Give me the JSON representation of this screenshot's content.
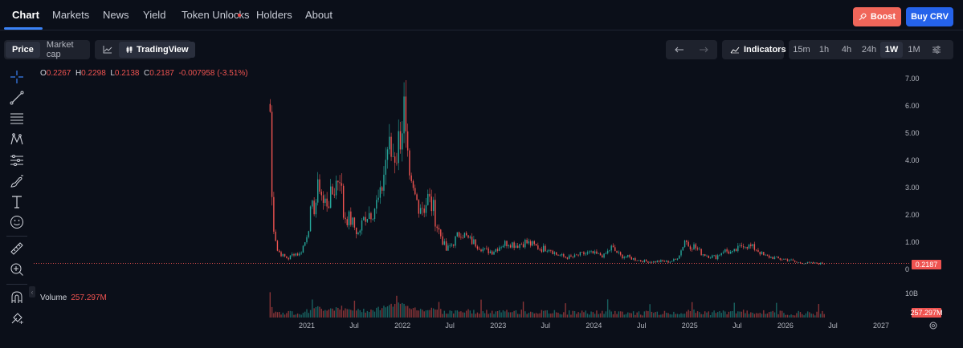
{
  "nav": {
    "tabs": [
      {
        "label": "Chart"
      },
      {
        "label": "Markets"
      },
      {
        "label": "News"
      },
      {
        "label": "Yield"
      },
      {
        "label": "Token Unlocks"
      },
      {
        "label": "Holders"
      },
      {
        "label": "About"
      }
    ],
    "active_tab": "Chart",
    "boost_label": "Boost",
    "buy_label": "Buy CRV",
    "boost_color": "#f0665a",
    "buy_color": "#2563eb"
  },
  "toolbar": {
    "price_label": "Price",
    "marketcap_label": "Market cap",
    "tradingview_label": "TradingView",
    "indicators_label": "Indicators",
    "timeframes": [
      "15m",
      "1h",
      "4h",
      "24h",
      "1W",
      "1M"
    ],
    "active_timeframe": "1W"
  },
  "ohlc": {
    "o_label": "O",
    "o": "0.2267",
    "h_label": "H",
    "h": "0.2298",
    "l_label": "L",
    "l": "0.2138",
    "c_label": "C",
    "c": "0.2187",
    "change": "-0.007958 (-3.51%)"
  },
  "volume": {
    "label": "Volume",
    "value": "257.297M",
    "axis_top": "10B",
    "badge": "257.297M"
  },
  "price_badge": "0.2187",
  "colors": {
    "up": "#26a69a",
    "down": "#ef5350",
    "accent": "#3b82f6"
  },
  "left_tools": [
    "crosshair-icon",
    "trendline-icon",
    "fib-icon",
    "pattern-icon",
    "prediction-icon",
    "brush-icon",
    "text-icon",
    "emoji-icon",
    "ruler-icon",
    "zoom-in-icon",
    "magnet-icon",
    "lock-icon"
  ],
  "chart_data": {
    "type": "candlestick",
    "ylabel": "",
    "y_ticks": [
      "7.00",
      "6.00",
      "5.00",
      "4.00",
      "3.00",
      "2.00",
      "1.00",
      "0"
    ],
    "ylim": [
      0,
      7
    ],
    "x_ticks": [
      "2021",
      "Jul",
      "2022",
      "Jul",
      "2023",
      "Jul",
      "2024",
      "Jul",
      "2025",
      "Jul",
      "2026",
      "Jul",
      "2027"
    ],
    "x_tick_dates": [
      "2021-01-01",
      "2021-07-01",
      "2022-01-01",
      "2022-07-01",
      "2023-01-01",
      "2023-07-01",
      "2024-01-01",
      "2024-07-01",
      "2025-01-01",
      "2025-07-01",
      "2026-01-01",
      "2026-07-01",
      "2027-01-01"
    ],
    "last_price": 0.2187,
    "series": [
      {
        "name": "CRV",
        "close_points": [
          [
            "2020-08-14",
            5.8
          ],
          [
            "2020-08-21",
            2.6
          ],
          [
            "2020-08-28",
            1.6
          ],
          [
            "2020-09-11",
            0.7
          ],
          [
            "2020-10-02",
            0.5
          ],
          [
            "2020-10-23",
            0.4
          ],
          [
            "2020-11-13",
            0.6
          ],
          [
            "2020-12-04",
            0.55
          ],
          [
            "2020-12-25",
            1.0
          ],
          [
            "2021-01-15",
            2.0
          ],
          [
            "2021-02-05",
            2.5
          ],
          [
            "2021-02-19",
            3.2
          ],
          [
            "2021-03-05",
            2.4
          ],
          [
            "2021-04-02",
            2.6
          ],
          [
            "2021-05-07",
            3.6
          ],
          [
            "2021-05-21",
            2.0
          ],
          [
            "2021-06-18",
            1.8
          ],
          [
            "2021-07-16",
            1.3
          ],
          [
            "2021-08-13",
            2.0
          ],
          [
            "2021-09-10",
            2.2
          ],
          [
            "2021-10-08",
            2.6
          ],
          [
            "2021-11-05",
            4.5
          ],
          [
            "2021-11-19",
            4.2
          ],
          [
            "2021-12-10",
            4.3
          ],
          [
            "2022-01-07",
            5.8
          ],
          [
            "2022-01-14",
            4.5
          ],
          [
            "2022-01-28",
            3.0
          ],
          [
            "2022-02-25",
            2.5
          ],
          [
            "2022-03-25",
            2.3
          ],
          [
            "2022-04-08",
            2.6
          ],
          [
            "2022-04-29",
            2.2
          ],
          [
            "2022-05-13",
            1.6
          ],
          [
            "2022-06-17",
            0.7
          ],
          [
            "2022-07-15",
            1.0
          ],
          [
            "2022-08-12",
            1.4
          ],
          [
            "2022-09-09",
            1.1
          ],
          [
            "2022-10-07",
            0.95
          ],
          [
            "2022-11-11",
            0.7
          ],
          [
            "2022-12-09",
            0.65
          ],
          [
            "2023-01-13",
            0.9
          ],
          [
            "2023-02-10",
            1.0
          ],
          [
            "2023-03-10",
            0.9
          ],
          [
            "2023-04-14",
            1.0
          ],
          [
            "2023-05-12",
            0.9
          ],
          [
            "2023-06-16",
            0.75
          ],
          [
            "2023-07-14",
            0.8
          ],
          [
            "2023-08-11",
            0.55
          ],
          [
            "2023-09-15",
            0.45
          ],
          [
            "2023-10-13",
            0.45
          ],
          [
            "2023-11-10",
            0.55
          ],
          [
            "2023-12-15",
            0.6
          ],
          [
            "2024-01-12",
            0.55
          ],
          [
            "2024-02-09",
            0.5
          ],
          [
            "2024-03-08",
            0.8
          ],
          [
            "2024-04-12",
            0.5
          ],
          [
            "2024-05-10",
            0.45
          ],
          [
            "2024-06-14",
            0.35
          ],
          [
            "2024-07-12",
            0.3
          ],
          [
            "2024-08-09",
            0.28
          ],
          [
            "2024-09-13",
            0.3
          ],
          [
            "2024-10-11",
            0.28
          ],
          [
            "2024-11-08",
            0.35
          ],
          [
            "2024-11-29",
            0.7
          ],
          [
            "2024-12-13",
            1.1
          ],
          [
            "2024-12-27",
            0.9
          ],
          [
            "2025-01-17",
            0.85
          ],
          [
            "2025-02-14",
            0.6
          ],
          [
            "2025-03-14",
            0.5
          ],
          [
            "2025-04-11",
            0.45
          ],
          [
            "2025-05-09",
            0.7
          ],
          [
            "2025-06-13",
            0.6
          ],
          [
            "2025-07-11",
            0.8
          ],
          [
            "2025-07-25",
            0.95
          ],
          [
            "2025-08-15",
            0.85
          ],
          [
            "2025-09-12",
            0.75
          ],
          [
            "2025-10-10",
            0.5
          ],
          [
            "2025-11-07",
            0.45
          ],
          [
            "2025-12-12",
            0.38
          ],
          [
            "2026-01-16",
            0.35
          ],
          [
            "2026-02-13",
            0.25
          ],
          [
            "2026-03-13",
            0.24
          ],
          [
            "2026-04-10",
            0.23
          ],
          [
            "2026-05-08",
            0.22
          ],
          [
            "2026-05-29",
            0.2187
          ]
        ]
      }
    ],
    "volume_axis": [
      "10B"
    ],
    "grid": false
  }
}
